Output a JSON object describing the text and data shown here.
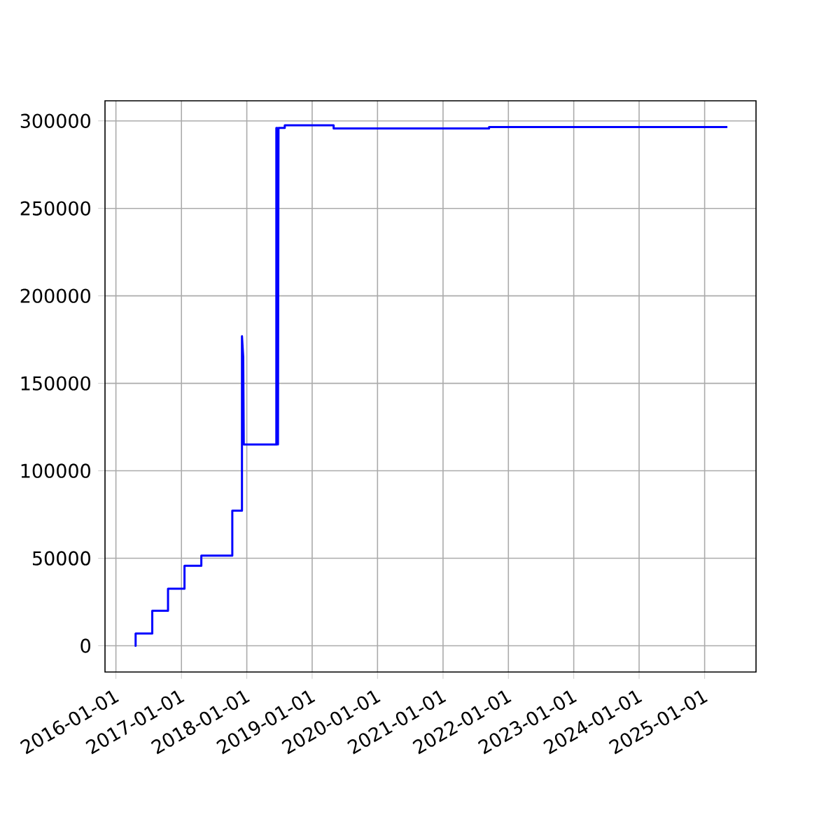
{
  "chart_data": {
    "type": "line",
    "color": "#0000ff",
    "grid": true,
    "x": [
      "2016-04-15",
      "2016-04-20",
      "2016-04-20",
      "2016-07-22",
      "2016-07-22",
      "2016-10-18",
      "2016-10-18",
      "2017-01-18",
      "2017-01-18",
      "2017-04-22",
      "2017-04-22",
      "2017-10-12",
      "2017-10-12",
      "2017-12-05",
      "2017-12-05",
      "2017-12-12",
      "2017-12-15",
      "2018-06-15",
      "2018-06-15",
      "2018-06-18",
      "2018-06-20",
      "2018-06-24",
      "2018-06-27",
      "2018-08-01",
      "2018-08-01",
      "2019-05-01",
      "2019-05-01",
      "2021-09-15",
      "2021-09-15",
      "2025-05-08"
    ],
    "values": [
      0,
      0,
      7000,
      7000,
      20000,
      20000,
      32600,
      32600,
      45700,
      45700,
      51500,
      51500,
      77200,
      77200,
      177000,
      165000,
      115000,
      115000,
      296000,
      115000,
      296000,
      115000,
      296000,
      296000,
      297500,
      297500,
      295700,
      295700,
      296500,
      296500
    ],
    "xlim": [
      "2015-11-01",
      "2025-10-15"
    ],
    "xticks": [
      "2016-01-01",
      "2017-01-01",
      "2018-01-01",
      "2019-01-01",
      "2020-01-01",
      "2021-01-01",
      "2022-01-01",
      "2023-01-01",
      "2024-01-01",
      "2025-01-01"
    ],
    "ylim": [
      -15000,
      311500
    ],
    "yticks": [
      0,
      50000,
      100000,
      150000,
      200000,
      250000,
      300000
    ]
  }
}
